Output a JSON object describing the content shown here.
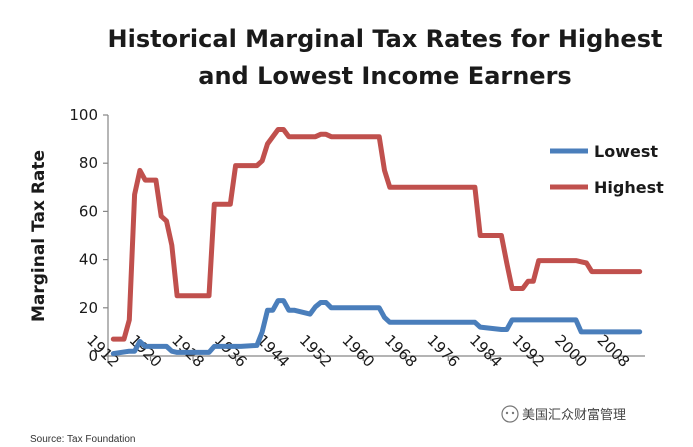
{
  "chart_data": {
    "type": "line",
    "title_lines": [
      "Historical Marginal Tax Rates for Highest",
      "and Lowest Income Earners"
    ],
    "xlabel": "",
    "ylabel": "Marginal Tax Rate",
    "ylim": [
      0,
      100
    ],
    "yticks": [
      "0",
      "20",
      "40",
      "60",
      "80",
      "100"
    ],
    "yticks_values": [
      0,
      20,
      40,
      60,
      80,
      100
    ],
    "xlim": [
      1912,
      2013
    ],
    "xticks": [
      "1912",
      "1920",
      "1928",
      "1936",
      "1944",
      "1952",
      "1960",
      "1968",
      "1976",
      "1984",
      "1992",
      "2000",
      "2008"
    ],
    "xticks_values": [
      1912,
      1920,
      1928,
      1936,
      1944,
      1952,
      1960,
      1968,
      1976,
      1984,
      1992,
      2000,
      2008
    ],
    "legend_position": "top-right",
    "series": [
      {
        "name": "Lowest",
        "color": "#4a7ebb",
        "x": [
          1913,
          1916,
          1917,
          1918,
          1919,
          1922,
          1923,
          1924,
          1925,
          1929,
          1930,
          1931,
          1932,
          1936,
          1937,
          1940,
          1941,
          1942,
          1943,
          1944,
          1945,
          1946,
          1947,
          1950,
          1951,
          1952,
          1953,
          1954,
          1963,
          1964,
          1965,
          1981,
          1982,
          1986,
          1987,
          1988,
          2000,
          2001,
          2002,
          2003,
          2012
        ],
        "values": [
          1,
          2,
          2,
          6,
          4,
          4,
          4,
          2,
          1.5,
          1.5,
          1.5,
          1.5,
          4,
          4,
          4,
          4.4,
          10,
          19,
          19,
          23,
          23,
          19,
          19,
          17.4,
          20.4,
          22.2,
          22.2,
          20,
          20,
          16,
          14,
          14,
          12,
          11,
          11,
          15,
          15,
          10,
          10,
          10,
          10
        ]
      },
      {
        "name": "Highest",
        "color": "#c0504d",
        "x": [
          1913,
          1915,
          1916,
          1917,
          1918,
          1919,
          1921,
          1922,
          1923,
          1924,
          1925,
          1931,
          1932,
          1935,
          1936,
          1940,
          1941,
          1942,
          1944,
          1945,
          1946,
          1950,
          1951,
          1952,
          1953,
          1954,
          1963,
          1964,
          1965,
          1981,
          1982,
          1986,
          1987,
          1988,
          1990,
          1991,
          1992,
          1993,
          2000,
          2001,
          2002,
          2003,
          2012
        ],
        "values": [
          7,
          7,
          15,
          67,
          77,
          73,
          73,
          58,
          56,
          46,
          25,
          25,
          63,
          63,
          79,
          79,
          81,
          88,
          94,
          94,
          91,
          91,
          91,
          92,
          92,
          91,
          91,
          77,
          70,
          70,
          50,
          50,
          38.5,
          28,
          28,
          31,
          31,
          39.6,
          39.6,
          39.1,
          38.6,
          35,
          35
        ]
      }
    ]
  },
  "source": "Source: Tax Foundation",
  "watermark": "美国汇众财富管理",
  "colors": {
    "axis": "#868686",
    "lowest": "#4a7ebb",
    "highest": "#c0504d"
  }
}
